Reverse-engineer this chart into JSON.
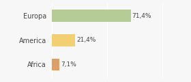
{
  "categories": [
    "Europa",
    "America",
    "Africa"
  ],
  "values": [
    71.4,
    21.4,
    7.1
  ],
  "labels": [
    "71,4%",
    "21,4%",
    "7,1%"
  ],
  "bar_colors": [
    "#b5cc96",
    "#f2cf72",
    "#d9a06b"
  ],
  "background_color": "#f7f7f7",
  "xlim": [
    0,
    105
  ],
  "bar_height": 0.5,
  "figsize": [
    2.8,
    1.2
  ],
  "dpi": 100
}
